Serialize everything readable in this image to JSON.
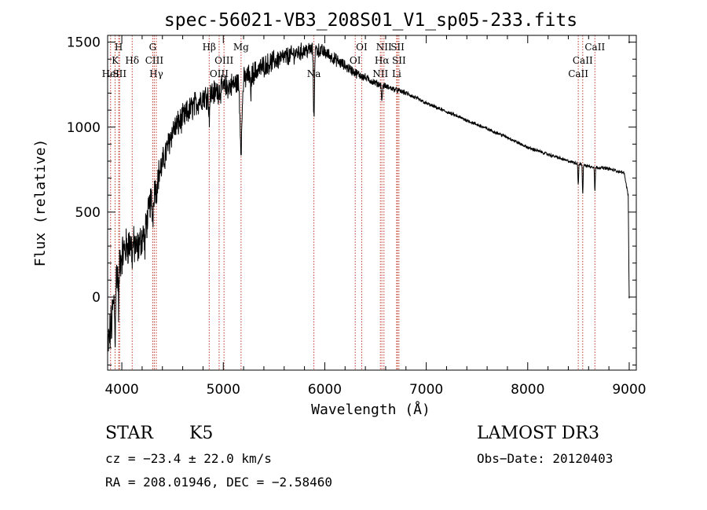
{
  "chart_data": {
    "type": "line",
    "title": "spec-56021-VB3_208S01_V1_sp05-233.fits",
    "xlabel": "Wavelength (Å)",
    "ylabel": "Flux (relative)",
    "xlim": [
      3860,
      9070
    ],
    "ylim": [
      -430,
      1540
    ],
    "x_ticks": [
      4000,
      5000,
      6000,
      7000,
      8000,
      9000
    ],
    "y_ticks": [
      0,
      500,
      1000,
      1500
    ],
    "x_minor_step": 200,
    "y_minor_step": 100,
    "color": "#000000",
    "line_color": "#c0392b",
    "spectrum_anchors": [
      [
        3860,
        -300
      ],
      [
        3900,
        -150
      ],
      [
        3950,
        150
      ],
      [
        4000,
        250
      ],
      [
        4050,
        300
      ],
      [
        4100,
        320
      ],
      [
        4150,
        280
      ],
      [
        4200,
        350
      ],
      [
        4250,
        450
      ],
      [
        4300,
        620
      ],
      [
        4350,
        700
      ],
      [
        4400,
        780
      ],
      [
        4450,
        880
      ],
      [
        4500,
        980
      ],
      [
        4600,
        1050
      ],
      [
        4700,
        1120
      ],
      [
        4800,
        1180
      ],
      [
        4900,
        1200
      ],
      [
        5000,
        1230
      ],
      [
        5100,
        1250
      ],
      [
        5200,
        1280
      ],
      [
        5300,
        1320
      ],
      [
        5400,
        1360
      ],
      [
        5500,
        1390
      ],
      [
        5600,
        1410
      ],
      [
        5700,
        1430
      ],
      [
        5800,
        1450
      ],
      [
        5900,
        1460
      ],
      [
        6000,
        1440
      ],
      [
        6100,
        1400
      ],
      [
        6200,
        1360
      ],
      [
        6300,
        1320
      ],
      [
        6400,
        1290
      ],
      [
        6500,
        1260
      ],
      [
        6600,
        1240
      ],
      [
        6700,
        1220
      ],
      [
        6800,
        1200
      ],
      [
        6900,
        1170
      ],
      [
        7000,
        1140
      ],
      [
        7200,
        1090
      ],
      [
        7400,
        1040
      ],
      [
        7600,
        990
      ],
      [
        7800,
        940
      ],
      [
        8000,
        880
      ],
      [
        8200,
        840
      ],
      [
        8400,
        800
      ],
      [
        8600,
        770
      ],
      [
        8800,
        755
      ],
      [
        8950,
        730
      ],
      [
        8990,
        600
      ],
      [
        9000,
        0
      ]
    ],
    "noise_amplitude": [
      [
        3860,
        200
      ],
      [
        4200,
        150
      ],
      [
        4500,
        120
      ],
      [
        5000,
        110
      ],
      [
        5500,
        90
      ],
      [
        6000,
        60
      ],
      [
        6500,
        30
      ],
      [
        7000,
        15
      ],
      [
        9000,
        12
      ]
    ],
    "absorption_features": [
      {
        "wavelength": 3934,
        "depth": 280,
        "width": 6
      },
      {
        "wavelength": 3969,
        "depth": 250,
        "width": 6
      },
      {
        "wavelength": 4102,
        "depth": 80,
        "width": 6
      },
      {
        "wavelength": 4227,
        "depth": 120,
        "width": 6
      },
      {
        "wavelength": 4305,
        "depth": 150,
        "width": 10
      },
      {
        "wavelength": 4340,
        "depth": 90,
        "width": 6
      },
      {
        "wavelength": 4861,
        "depth": 120,
        "width": 7
      },
      {
        "wavelength": 5175,
        "depth": 380,
        "width": 14
      },
      {
        "wavelength": 5270,
        "depth": 120,
        "width": 6
      },
      {
        "wavelength": 5893,
        "depth": 420,
        "width": 7
      },
      {
        "wavelength": 6563,
        "depth": 100,
        "width": 6
      },
      {
        "wavelength": 8498,
        "depth": 120,
        "width": 5
      },
      {
        "wavelength": 8542,
        "depth": 170,
        "width": 5
      },
      {
        "wavelength": 8662,
        "depth": 140,
        "width": 5
      }
    ],
    "lines": [
      {
        "wavelength": 3889,
        "label": "HeI",
        "row": 3
      },
      {
        "wavelength": 3934,
        "label": "K",
        "row": 2
      },
      {
        "wavelength": 3969,
        "label": "H",
        "row": 1
      },
      {
        "wavelength": 3978,
        "label": "SII",
        "row": 3
      },
      {
        "wavelength": 4102,
        "label": "Hδ",
        "row": 2
      },
      {
        "wavelength": 4305,
        "label": "G",
        "row": 1
      },
      {
        "wavelength": 4320,
        "label": "CIII",
        "row": 2
      },
      {
        "wavelength": 4340,
        "label": "Hγ",
        "row": 3
      },
      {
        "wavelength": 4861,
        "label": "Hβ",
        "row": 1
      },
      {
        "wavelength": 4959,
        "label": "OIII",
        "row": 3
      },
      {
        "wavelength": 5007,
        "label": "OIII",
        "row": 2
      },
      {
        "wavelength": 5175,
        "label": "Mg",
        "row": 1
      },
      {
        "wavelength": 5893,
        "label": "Na",
        "row": 3
      },
      {
        "wavelength": 6300,
        "label": "OI",
        "row": 2
      },
      {
        "wavelength": 6364,
        "label": "OI",
        "row": 1
      },
      {
        "wavelength": 6548,
        "label": "NII",
        "row": 3
      },
      {
        "wavelength": 6563,
        "label": "Hα",
        "row": 2
      },
      {
        "wavelength": 6583,
        "label": "NII",
        "row": 1
      },
      {
        "wavelength": 6708,
        "label": "Li",
        "row": 3
      },
      {
        "wavelength": 6717,
        "label": "SII",
        "row": 1
      },
      {
        "wavelength": 6731,
        "label": "SII",
        "row": 2
      },
      {
        "wavelength": 8498,
        "label": "CaII",
        "row": 3
      },
      {
        "wavelength": 8542,
        "label": "CaII",
        "row": 2
      },
      {
        "wavelength": 8662,
        "label": "CaII",
        "row": 1
      }
    ]
  },
  "info": {
    "class_label": "STAR",
    "subclass": "K5",
    "survey": "LAMOST DR3",
    "cz": "cz = −23.4 ± 22.0 km/s",
    "obs_date": "Obs−Date: 20120403",
    "coords": "RA = 208.01946, DEC =  −2.58460"
  }
}
